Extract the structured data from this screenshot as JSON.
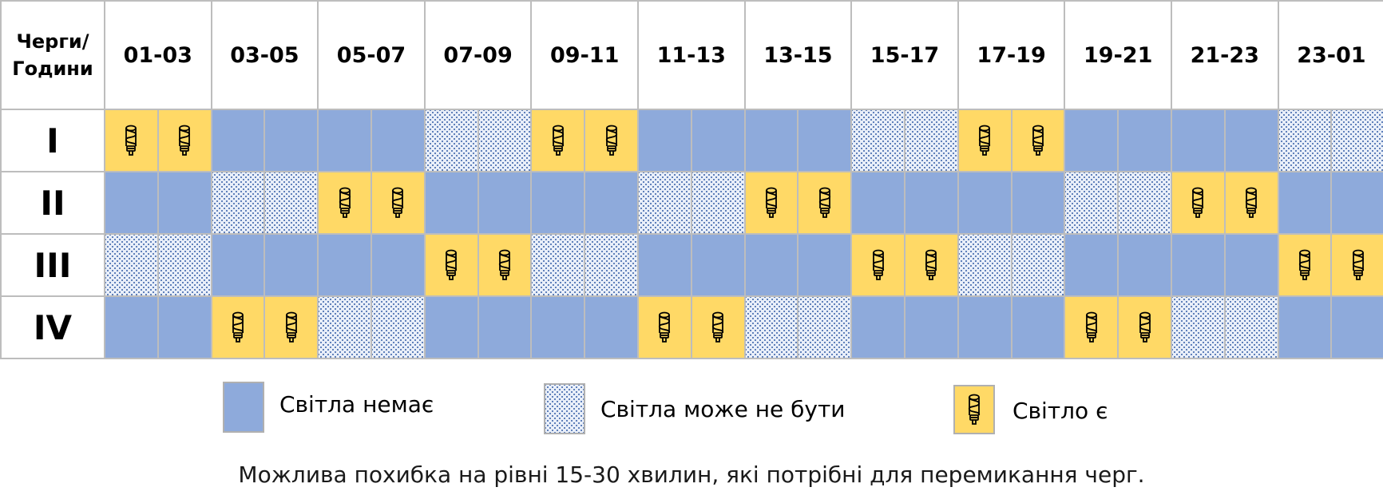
{
  "header": {
    "corner_label_line1": "Черги/",
    "corner_label_line2": "Години",
    "hours": [
      "01-03",
      "03-05",
      "05-07",
      "07-09",
      "09-11",
      "11-13",
      "13-15",
      "15-17",
      "17-19",
      "19-21",
      "21-23",
      "23-01"
    ]
  },
  "rows": [
    {
      "label": "I",
      "slots": [
        "on",
        "on",
        "off",
        "off",
        "off",
        "off",
        "maybe",
        "maybe",
        "on",
        "on",
        "off",
        "off",
        "off",
        "off",
        "maybe",
        "maybe",
        "on",
        "on",
        "off",
        "off",
        "off",
        "off",
        "maybe",
        "maybe"
      ]
    },
    {
      "label": "II",
      "slots": [
        "off",
        "off",
        "maybe",
        "maybe",
        "on",
        "on",
        "off",
        "off",
        "off",
        "off",
        "maybe",
        "maybe",
        "on",
        "on",
        "off",
        "off",
        "off",
        "off",
        "maybe",
        "maybe",
        "on",
        "on",
        "off",
        "off"
      ]
    },
    {
      "label": "III",
      "slots": [
        "maybe",
        "maybe",
        "off",
        "off",
        "off",
        "off",
        "on",
        "on",
        "maybe",
        "maybe",
        "off",
        "off",
        "off",
        "off",
        "on",
        "on",
        "maybe",
        "maybe",
        "off",
        "off",
        "off",
        "off",
        "on",
        "on"
      ]
    },
    {
      "label": "IV",
      "slots": [
        "off",
        "off",
        "on",
        "on",
        "maybe",
        "maybe",
        "off",
        "off",
        "off",
        "off",
        "on",
        "on",
        "maybe",
        "maybe",
        "off",
        "off",
        "off",
        "off",
        "on",
        "on",
        "maybe",
        "maybe",
        "off",
        "off"
      ]
    }
  ],
  "legend": {
    "off": "Світла немає",
    "maybe": "Світла може не бути",
    "on": "Світло є"
  },
  "note": "Можлива похибка на рівні 15-30 хвилин, які потрібні для перемикання черг.",
  "colors": {
    "off": "#8eaadb",
    "maybe": "#e9eff9",
    "on": "#ffd966",
    "border": "#bdbdbd"
  },
  "icons": {
    "on_icon": "light-bulb-icon"
  }
}
